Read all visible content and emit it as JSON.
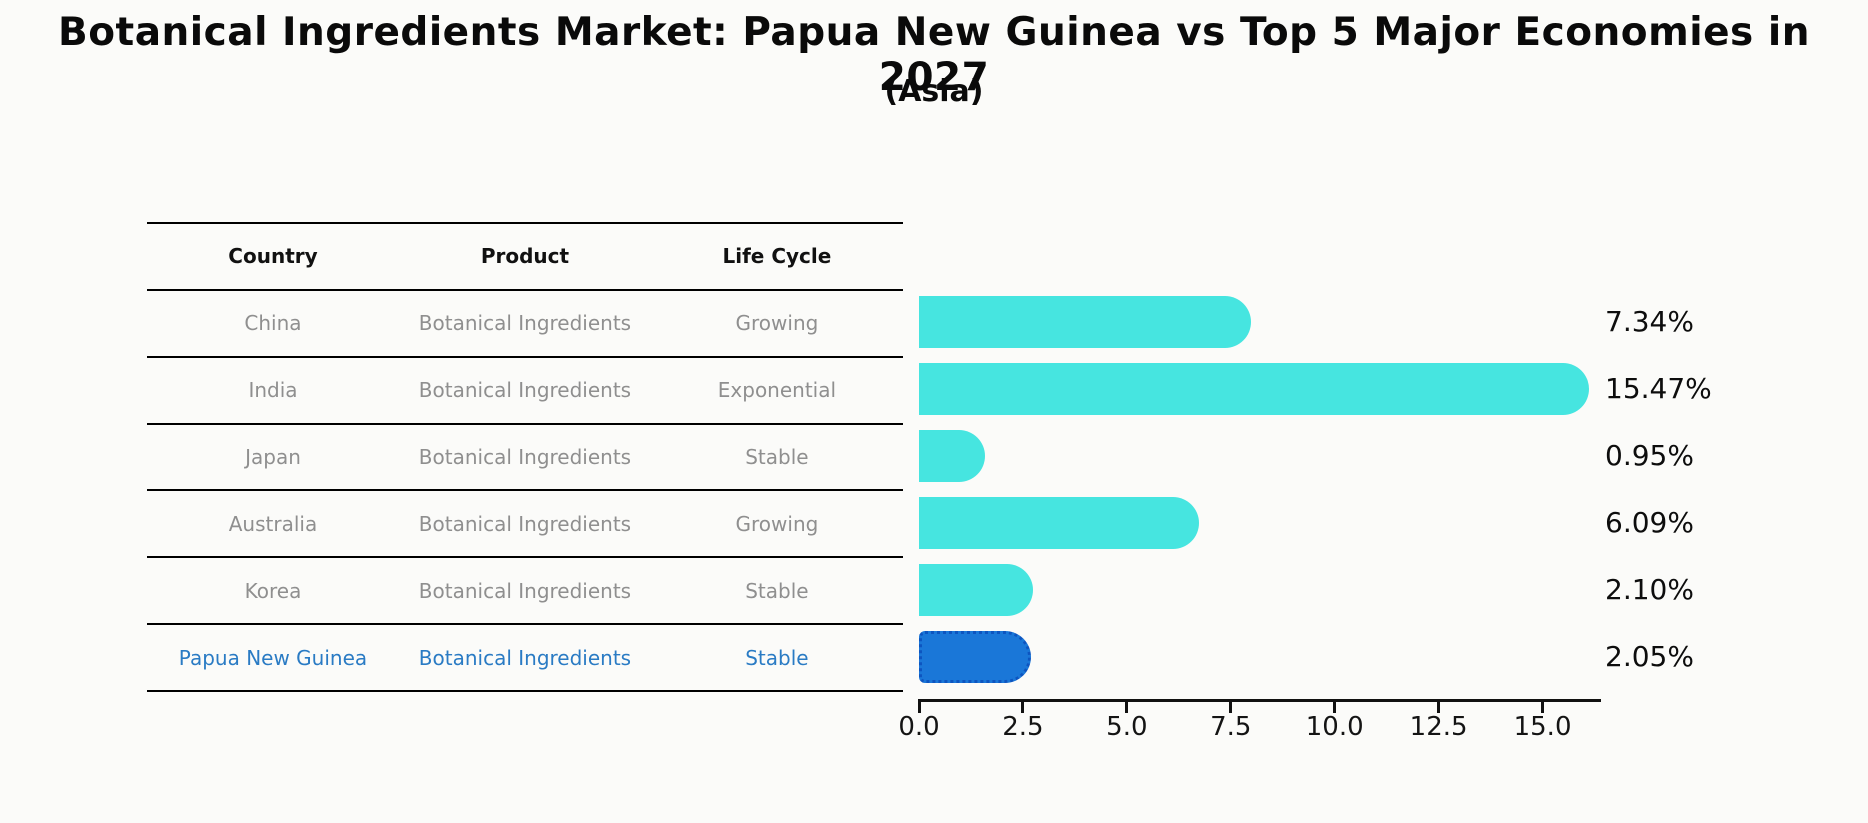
{
  "header": {
    "title": "Botanical Ingredients Market: Papua New Guinea vs Top 5 Major Economies in 2027",
    "subtitle": "(Asia)"
  },
  "table": {
    "columns": [
      "Country",
      "Product",
      "Life Cycle"
    ],
    "rows": [
      {
        "country": "China",
        "product": "Botanical Ingredients",
        "life_cycle": "Growing",
        "highlight": false
      },
      {
        "country": "India",
        "product": "Botanical Ingredients",
        "life_cycle": "Exponential",
        "highlight": false
      },
      {
        "country": "Japan",
        "product": "Botanical Ingredients",
        "life_cycle": "Stable",
        "highlight": false
      },
      {
        "country": "Australia",
        "product": "Botanical Ingredients",
        "life_cycle": "Growing",
        "highlight": false
      },
      {
        "country": "Korea",
        "product": "Botanical Ingredients",
        "life_cycle": "Stable",
        "highlight": false
      },
      {
        "country": "Papua New Guinea",
        "product": "Botanical Ingredients",
        "life_cycle": "Stable",
        "highlight": true
      }
    ]
  },
  "chart_data": {
    "type": "bar",
    "orientation": "horizontal",
    "title": "Botanical Ingredients Market: Papua New Guinea vs Top 5 Major Economies in 2027",
    "subtitle": "(Asia)",
    "categories": [
      "China",
      "India",
      "Japan",
      "Australia",
      "Korea",
      "Papua New Guinea"
    ],
    "values": [
      7.34,
      15.47,
      0.95,
      6.09,
      2.1,
      2.05
    ],
    "value_labels": [
      "7.34%",
      "15.47%",
      "0.95%",
      "6.09%",
      "2.10%",
      "2.05%"
    ],
    "highlight_index": 5,
    "xlim": [
      0,
      16.4
    ],
    "x_tick_values": [
      0,
      2.5,
      5,
      7.5,
      10,
      12.5,
      15
    ],
    "x_tick_labels": [
      "0.0",
      "2.5",
      "5.0",
      "7.5",
      "10.0",
      "12.5",
      "15.0"
    ],
    "grid": false,
    "legend": false,
    "bar_color": "#46e5e0",
    "highlight_bar_color": "#1a77d8",
    "highlight_edge_color": "#0d55c0"
  },
  "colors": {
    "title_text": "#0a0a0a",
    "table_header_text": "#111111",
    "table_row_text": "#8f8f8f",
    "highlight_row_text": "#2a7bc4",
    "value_label_text": "#0d0d0d",
    "axis": "#111111",
    "background": "#fbfbf9"
  }
}
